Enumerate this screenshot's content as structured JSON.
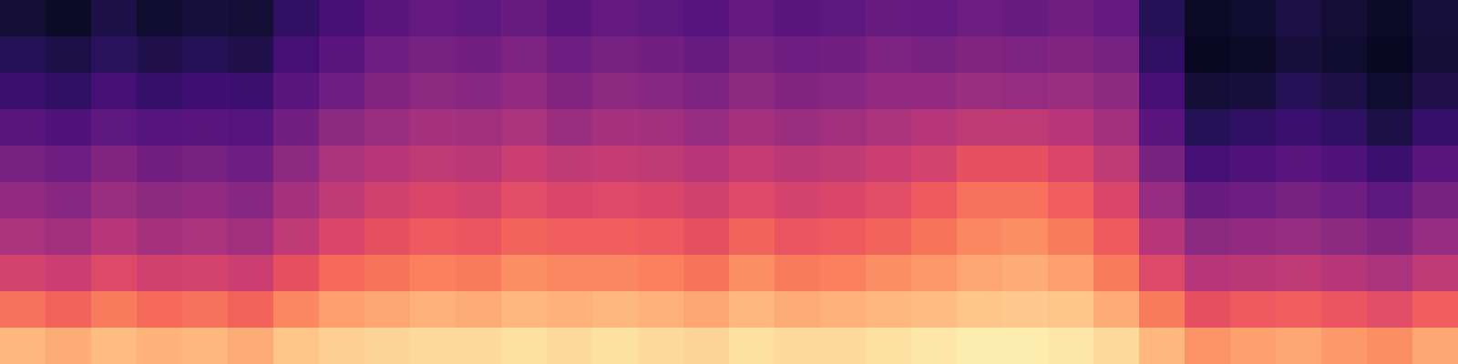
{
  "chart_data": {
    "type": "heatmap",
    "tick_labels": false,
    "color_range": [
      -80,
      0
    ],
    "cells": [
      [
        -72,
        -74,
        -70,
        -73,
        -71,
        -72,
        -66,
        -62,
        -58,
        -56,
        -57,
        -55,
        -58,
        -56,
        -57,
        -59,
        -56,
        -58,
        -57,
        -55,
        -56,
        -54,
        -55,
        -53,
        -56,
        -68,
        -74,
        -73,
        -70,
        -72,
        -74,
        -71
      ],
      [
        -68,
        -70,
        -67,
        -69,
        -68,
        -69,
        -62,
        -58,
        -54,
        -52,
        -53,
        -51,
        -54,
        -52,
        -53,
        -55,
        -52,
        -54,
        -53,
        -51,
        -52,
        -50,
        -51,
        -50,
        -52,
        -66,
        -75,
        -74,
        -71,
        -73,
        -75,
        -72
      ],
      [
        -64,
        -66,
        -62,
        -65,
        -63,
        -64,
        -58,
        -54,
        -50,
        -48,
        -49,
        -47,
        -50,
        -48,
        -49,
        -51,
        -48,
        -50,
        -49,
        -47,
        -47,
        -45,
        -46,
        -45,
        -48,
        -62,
        -72,
        -71,
        -68,
        -70,
        -73,
        -69
      ],
      [
        -58,
        -60,
        -57,
        -59,
        -58,
        -59,
        -53,
        -48,
        -45,
        -43,
        -44,
        -42,
        -45,
        -43,
        -44,
        -46,
        -43,
        -45,
        -44,
        -42,
        -40,
        -38,
        -38,
        -40,
        -44,
        -58,
        -68,
        -66,
        -64,
        -66,
        -70,
        -65
      ],
      [
        -52,
        -54,
        -50,
        -53,
        -52,
        -54,
        -48,
        -42,
        -40,
        -38,
        -39,
        -36,
        -38,
        -37,
        -38,
        -40,
        -37,
        -39,
        -38,
        -36,
        -34,
        -30,
        -30,
        -33,
        -38,
        -52,
        -62,
        -60,
        -58,
        -60,
        -64,
        -58
      ],
      [
        -47,
        -49,
        -45,
        -48,
        -47,
        -49,
        -43,
        -38,
        -35,
        -33,
        -34,
        -31,
        -33,
        -32,
        -33,
        -35,
        -32,
        -34,
        -33,
        -31,
        -28,
        -24,
        -24,
        -27,
        -33,
        -46,
        -55,
        -54,
        -52,
        -54,
        -57,
        -52
      ],
      [
        -42,
        -44,
        -40,
        -43,
        -42,
        -44,
        -38,
        -33,
        -30,
        -28,
        -29,
        -26,
        -27,
        -27,
        -28,
        -30,
        -26,
        -29,
        -28,
        -26,
        -23,
        -20,
        -19,
        -22,
        -28,
        -40,
        -48,
        -47,
        -46,
        -48,
        -50,
        -46
      ],
      [
        -34,
        -36,
        -32,
        -35,
        -34,
        -36,
        -30,
        -25,
        -23,
        -21,
        -22,
        -19,
        -20,
        -20,
        -21,
        -23,
        -19,
        -22,
        -21,
        -19,
        -17,
        -15,
        -14,
        -16,
        -22,
        -32,
        -40,
        -39,
        -38,
        -40,
        -42,
        -38
      ],
      [
        -24,
        -26,
        -22,
        -25,
        -24,
        -26,
        -20,
        -16,
        -15,
        -13,
        -14,
        -12,
        -13,
        -12,
        -13,
        -15,
        -12,
        -14,
        -13,
        -12,
        -11,
        -10,
        -9,
        -10,
        -14,
        -22,
        -30,
        -28,
        -27,
        -29,
        -31,
        -27
      ],
      [
        -12,
        -14,
        -11,
        -13,
        -12,
        -14,
        -10,
        -8,
        -7,
        -6,
        -6,
        -5,
        -6,
        -5,
        -6,
        -7,
        -5,
        -6,
        -6,
        -5,
        -4,
        -3,
        -3,
        -4,
        -6,
        -12,
        -18,
        -16,
        -15,
        -17,
        -19,
        -15
      ]
    ]
  }
}
